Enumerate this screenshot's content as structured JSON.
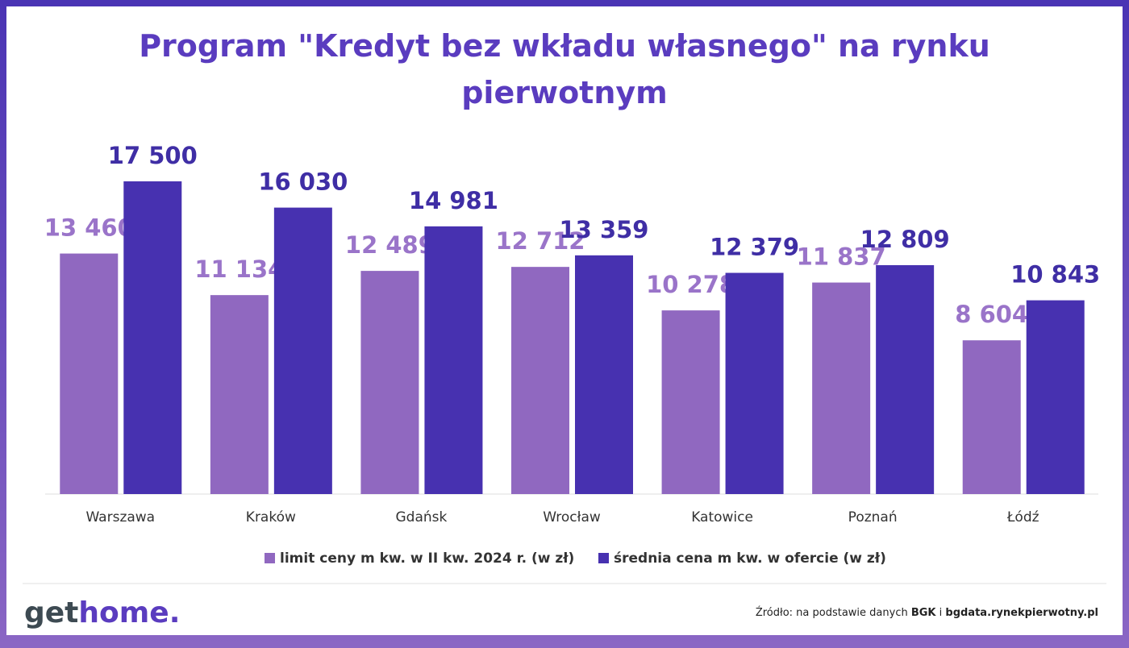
{
  "chart_data": {
    "type": "bar",
    "title": "Program \"Kredyt bez wkładu własnego\" na rynku pierwotnym",
    "categories": [
      "Warszawa",
      "Kraków",
      "Gdańsk",
      "Wrocław",
      "Katowice",
      "Poznań",
      "Łódź"
    ],
    "series": [
      {
        "name": "limit ceny m kw. w II kw. 2024 r. (w zł)",
        "color": "#9068c0",
        "values": [
          13460,
          11134,
          12489,
          12712,
          10278,
          11837,
          8604
        ],
        "value_labels": [
          "13 460",
          "11 134",
          "12 489",
          "12 712",
          "10 278",
          "11 837",
          "8 604"
        ]
      },
      {
        "name": "średnia cena m kw. w ofercie (w zł)",
        "color": "#4731b0",
        "values": [
          17500,
          16030,
          14981,
          13359,
          12379,
          12809,
          10843
        ],
        "value_labels": [
          "17 500",
          "16 030",
          "14 981",
          "13 359",
          "12 379",
          "12 809",
          "10 843"
        ]
      }
    ]
  },
  "footer": {
    "logo": [
      "get",
      "home."
    ],
    "source": [
      "Źródło: na podstawie danych ",
      "BGK",
      " i ",
      "bgdata.rynekpierwotny.pl"
    ]
  }
}
